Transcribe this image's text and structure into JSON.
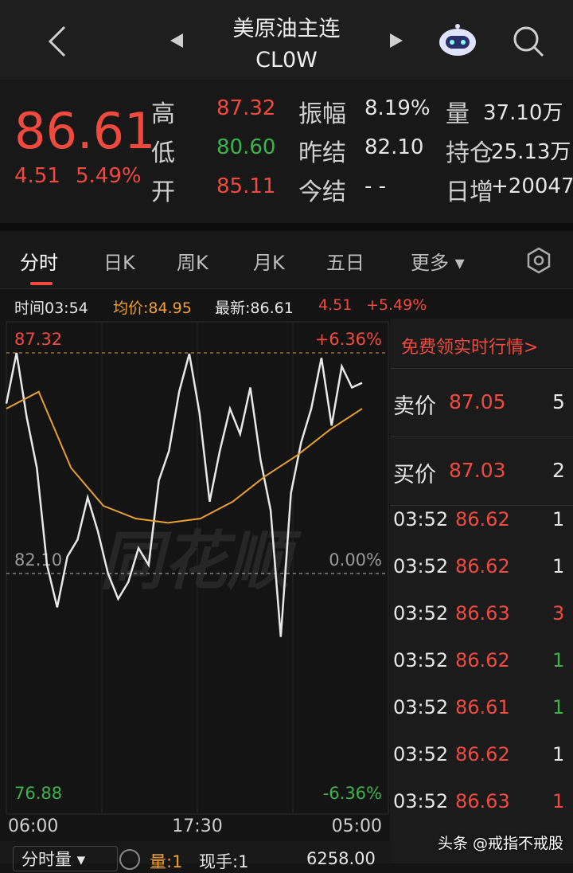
{
  "header": {
    "title": "美原油主连",
    "code": "CL0W"
  },
  "quote": {
    "price": "86.61",
    "change": "4.51",
    "change_pct": "5.49%",
    "stats": [
      [
        {
          "label": "高",
          "value": "87.32",
          "color": "#f04a3e"
        },
        {
          "label": "低",
          "value": "80.60",
          "color": "#3cb44a"
        },
        {
          "label": "开",
          "value": "85.11",
          "color": "#f04a3e"
        }
      ],
      [
        {
          "label": "振幅",
          "value": "8.19%",
          "color": "#e6e6e6"
        },
        {
          "label": "昨结",
          "value": "82.10",
          "color": "#e6e6e6"
        },
        {
          "label": "今结",
          "value": "- -",
          "color": "#e6e6e6"
        }
      ],
      [
        {
          "label": "量",
          "value": "37.10万",
          "color": "#e6e6e6"
        },
        {
          "label": "持仓",
          "value": "25.13万",
          "color": "#e6e6e6"
        },
        {
          "label": "日增",
          "value": "+20047",
          "color": "#e6e6e6"
        }
      ]
    ]
  },
  "tabs": [
    "分时",
    "日K",
    "周K",
    "月K",
    "五日",
    "更多"
  ],
  "info_bar": {
    "time": "时间03:54",
    "avg": "均价:84.95",
    "latest": "最新:86.61",
    "change": "4.51",
    "change_pct": "+5.49%"
  },
  "chart_data": {
    "type": "line",
    "watermark": "同花顺",
    "x_labels": [
      "06:00",
      "17:30",
      "05:00"
    ],
    "ylim": [
      76.88,
      87.32
    ],
    "yticks": [
      87.32,
      {
        "value": 82.1,
        "label": "82.10"
      },
      76.88
    ],
    "y2lim": [
      -6.36,
      6.36
    ],
    "y2ticks": [
      {
        "value": 6.36,
        "label": "+6.36%"
      },
      {
        "value": 0,
        "label": "0.00%"
      },
      {
        "value": -6.36,
        "label": "-6.36%"
      }
    ],
    "series": [
      {
        "name": "price",
        "color": "#e8e8e8",
        "values": [
          86.12,
          87.32,
          85.8,
          84.6,
          82.3,
          81.3,
          82.5,
          82.9,
          83.9,
          83.1,
          82.1,
          81.5,
          81.9,
          82.7,
          82.3,
          84.3,
          85.0,
          86.4,
          87.3,
          85.9,
          83.8,
          85.0,
          86.0,
          85.4,
          86.5,
          84.8,
          83.6,
          80.6,
          84.0,
          85.2,
          86.0,
          87.2,
          85.6,
          87.0,
          86.5,
          86.61
        ]
      },
      {
        "name": "avg",
        "color": "#e8a030",
        "values": [
          86.0,
          86.4,
          84.6,
          83.7,
          83.4,
          83.3,
          83.4,
          83.8,
          84.4,
          84.9,
          85.5,
          86.0
        ]
      }
    ]
  },
  "side_panel": {
    "promo": "免费领实时行情>",
    "ask": {
      "label": "卖价",
      "price": "87.05",
      "qty": "5"
    },
    "bid": {
      "label": "买价",
      "price": "87.03",
      "qty": "2"
    },
    "trades": [
      {
        "time": "03:52",
        "price": "86.62",
        "qty": "1",
        "qty_color": "#e6e6e6"
      },
      {
        "time": "03:52",
        "price": "86.62",
        "qty": "1",
        "qty_color": "#e6e6e6"
      },
      {
        "time": "03:52",
        "price": "86.63",
        "qty": "3",
        "qty_color": "#f04a3e"
      },
      {
        "time": "03:52",
        "price": "86.62",
        "qty": "1",
        "qty_color": "#3cb44a"
      },
      {
        "time": "03:52",
        "price": "86.61",
        "qty": "1",
        "qty_color": "#3cb44a"
      },
      {
        "time": "03:52",
        "price": "86.62",
        "qty": "1",
        "qty_color": "#e6e6e6"
      },
      {
        "time": "03:52",
        "price": "86.63",
        "qty": "1",
        "qty_color": "#f04a3e"
      }
    ]
  },
  "bottom_bar": {
    "selector": "分时量",
    "volume": "量:1",
    "current": "现手:1",
    "value": "6258.00"
  },
  "watermark": "头条 @戒指不戒股"
}
